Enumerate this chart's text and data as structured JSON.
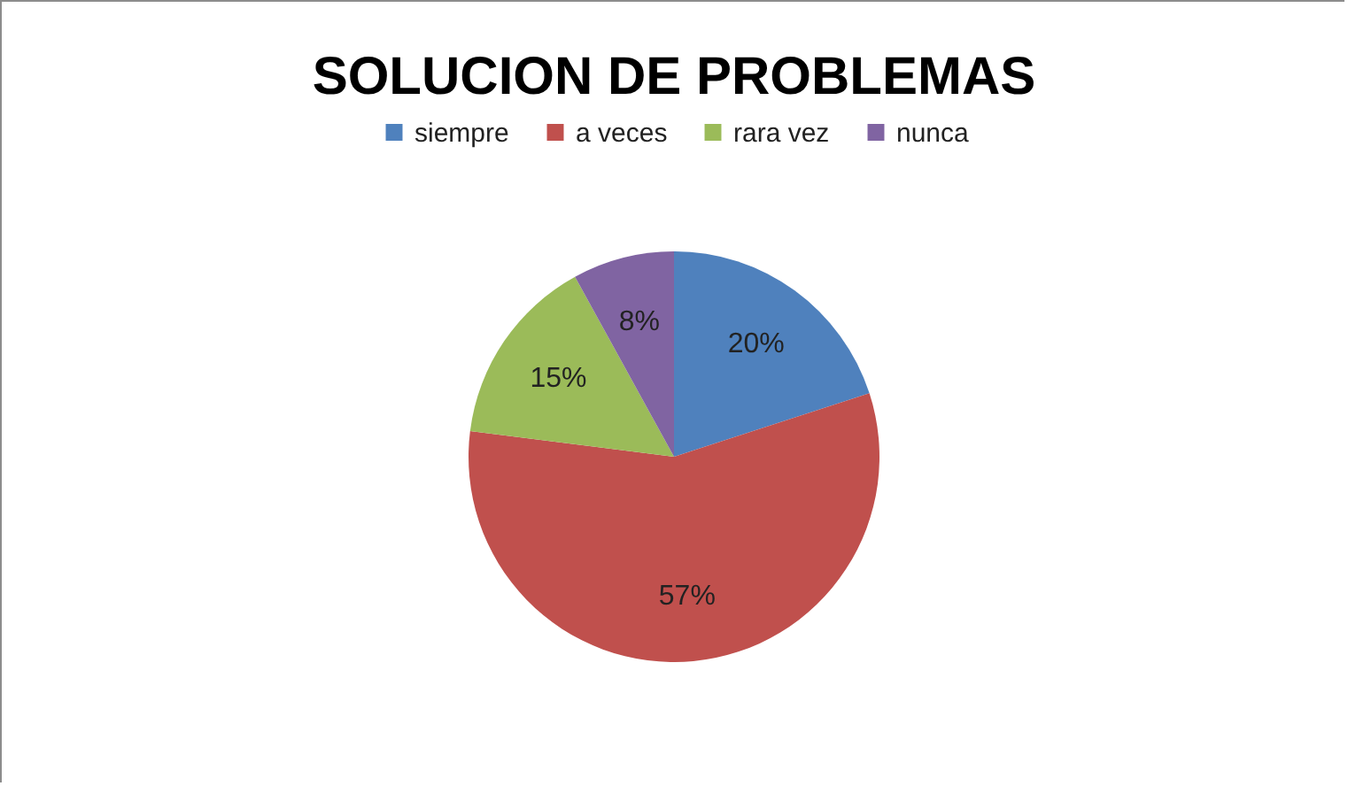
{
  "chart_data": {
    "type": "pie",
    "title": "SOLUCION DE PROBLEMAS",
    "categories": [
      "siempre",
      "a veces",
      "rara vez",
      "nunca"
    ],
    "values": [
      20,
      57,
      15,
      8
    ],
    "colors": [
      "#4f81bd",
      "#c0504d",
      "#9bbb59",
      "#8064a2"
    ],
    "value_labels": [
      "20%",
      "57%",
      "15%",
      "8%"
    ],
    "legend": "top"
  }
}
